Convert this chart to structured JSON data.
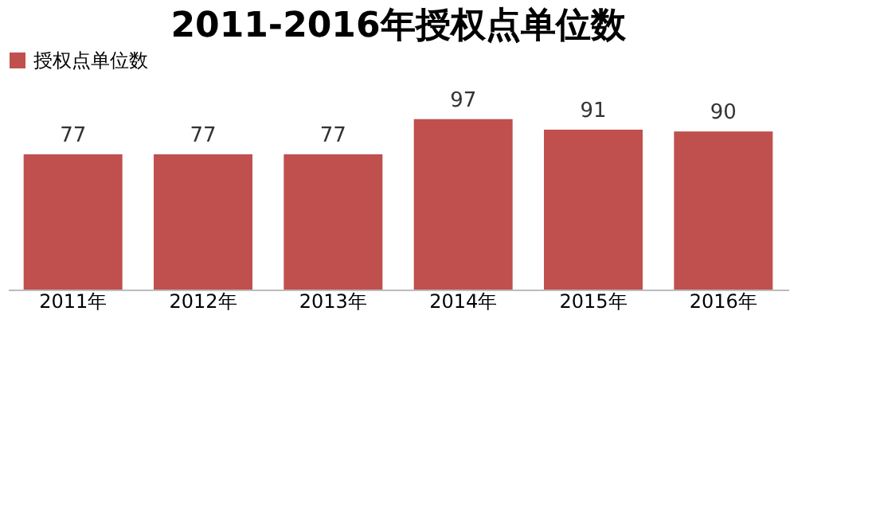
{
  "chart_data": {
    "type": "bar",
    "title": "2011-2016年授权点单位数",
    "categories": [
      "2011年",
      "2012年",
      "2013年",
      "2014年",
      "2015年",
      "2016年"
    ],
    "series": [
      {
        "name": "授权点单位数",
        "color": "#c0504d",
        "values": [
          77,
          77,
          77,
          97,
          91,
          90
        ]
      }
    ],
    "data_labels": true,
    "legend": "top",
    "grid": false
  }
}
